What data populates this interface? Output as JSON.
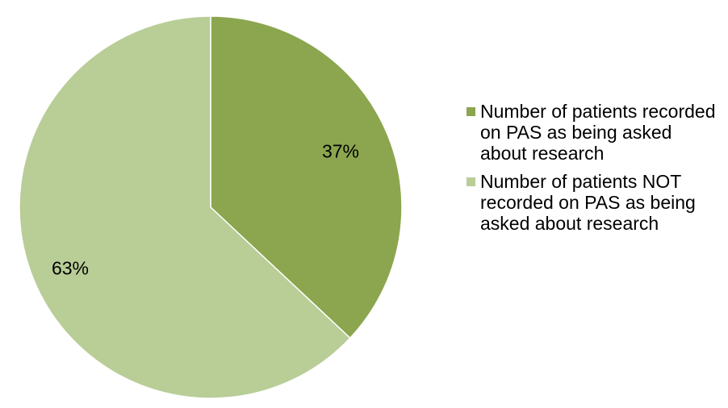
{
  "chart_data": {
    "type": "pie",
    "title": "",
    "slices": [
      {
        "name": "Number of patients recorded on PAS as being asked about research",
        "value": 37,
        "label": "37%",
        "color": "#8ba64e"
      },
      {
        "name": "Number of patients NOT recorded on PAS as being asked about research",
        "value": 63,
        "label": "63%",
        "color": "#b9cd97"
      }
    ],
    "start_angle_deg": 0,
    "direction": "clockwise",
    "legend_position": "right"
  }
}
